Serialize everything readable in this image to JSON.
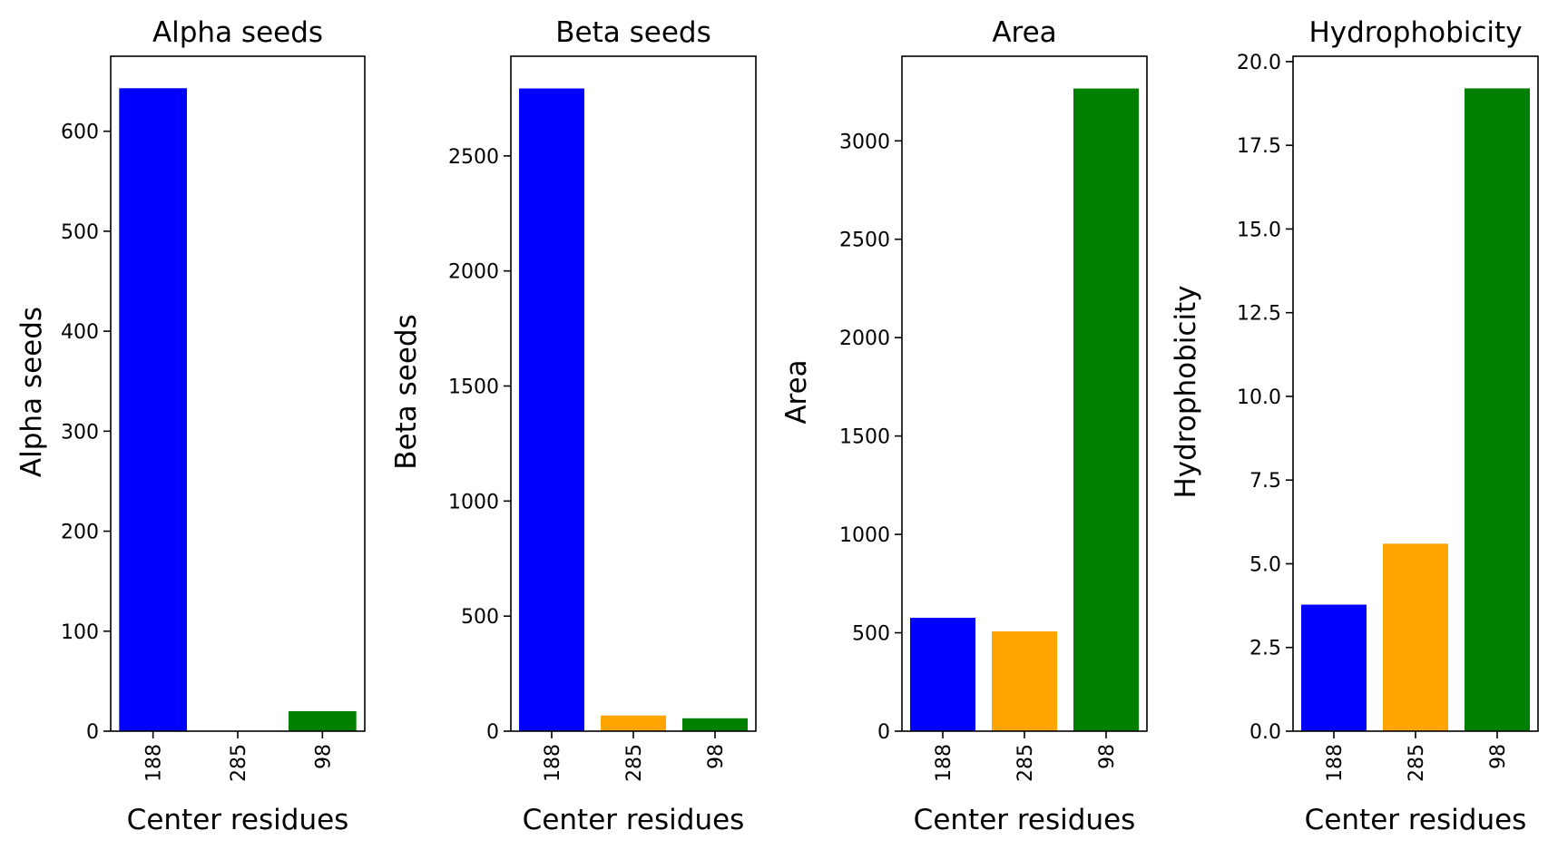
{
  "chart_data": [
    {
      "type": "bar",
      "title": "Alpha seeds",
      "xlabel": "Center residues",
      "ylabel": "Alpha seeds",
      "categories": [
        "188",
        "285",
        "98"
      ],
      "values": [
        643,
        0,
        20
      ],
      "colors": [
        "#0000ff",
        "#ffa500",
        "#008000"
      ],
      "ylim": [
        0,
        675
      ],
      "yticks": [
        0,
        100,
        200,
        300,
        400,
        500,
        600
      ],
      "ytick_labels": [
        "0",
        "100",
        "200",
        "300",
        "400",
        "500",
        "600"
      ],
      "grid": false,
      "legend": "none"
    },
    {
      "type": "bar",
      "title": "Beta seeds",
      "xlabel": "Center residues",
      "ylabel": "Beta seeds",
      "categories": [
        "188",
        "285",
        "98"
      ],
      "values": [
        2793,
        68,
        56
      ],
      "colors": [
        "#0000ff",
        "#ffa500",
        "#008000"
      ],
      "ylim": [
        0,
        2933
      ],
      "yticks": [
        0,
        500,
        1000,
        1500,
        2000,
        2500
      ],
      "ytick_labels": [
        "0",
        "500",
        "1000",
        "1500",
        "2000",
        "2500"
      ],
      "grid": false,
      "legend": "none"
    },
    {
      "type": "bar",
      "title": "Area",
      "xlabel": "Center residues",
      "ylabel": "Area",
      "categories": [
        "188",
        "285",
        "98"
      ],
      "values": [
        576,
        507,
        3266
      ],
      "colors": [
        "#0000ff",
        "#ffa500",
        "#008000"
      ],
      "ylim": [
        0,
        3430
      ],
      "yticks": [
        0,
        500,
        1000,
        1500,
        2000,
        2500,
        3000
      ],
      "ytick_labels": [
        "0",
        "500",
        "1000",
        "1500",
        "2000",
        "2500",
        "3000"
      ],
      "grid": false,
      "legend": "none"
    },
    {
      "type": "bar",
      "title": "Hydrophobicity",
      "xlabel": "Center residues",
      "ylabel": "Hydrophobicity",
      "categories": [
        "188",
        "285",
        "98"
      ],
      "values": [
        3.78,
        5.6,
        19.2
      ],
      "colors": [
        "#0000ff",
        "#ffa500",
        "#008000"
      ],
      "ylim": [
        0,
        20.16
      ],
      "yticks": [
        0,
        2.5,
        5,
        7.5,
        10,
        12.5,
        15,
        17.5,
        20
      ],
      "ytick_labels": [
        "0.0",
        "2.5",
        "5.0",
        "7.5",
        "10.0",
        "12.5",
        "15.0",
        "17.5",
        "20.0"
      ],
      "grid": false,
      "legend": "none"
    }
  ]
}
